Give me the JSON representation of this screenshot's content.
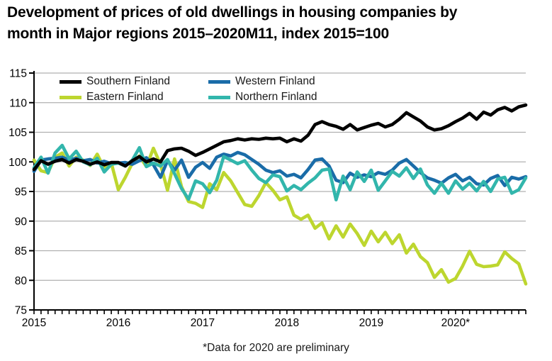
{
  "title": {
    "line1": "Development of prices of old dwellings in housing companies by",
    "line2": "month in Major regions 2015–2020M11, index 2015=100"
  },
  "footnote": "*Data for 2020 are preliminary",
  "chart_data": {
    "type": "line",
    "title": "Development of prices of old dwellings in housing companies by month in Major regions 2015–2020M11, index 2015=100",
    "xlabel": "",
    "ylabel": "",
    "ylim": [
      75,
      115
    ],
    "y_ticks": [
      75,
      80,
      85,
      90,
      95,
      100,
      105,
      110,
      115
    ],
    "x_tick_labels": [
      "2015",
      "2016",
      "2017",
      "2018",
      "2019",
      "2020*"
    ],
    "x_period": "monthly, 2015M01 to 2020M11",
    "grid": true,
    "gridline_color": "#b0b0b0",
    "axis_color": "#000000",
    "legend_position": "top-left",
    "series": [
      {
        "name": "Southern Finland",
        "color": "#000000",
        "values": [
          98.7,
          100.2,
          99.6,
          100.1,
          100.4,
          99.8,
          100.4,
          100.1,
          99.6,
          100.0,
          99.5,
          99.9,
          99.9,
          99.3,
          100.2,
          100.9,
          100.0,
          100.5,
          100.0,
          101.9,
          102.2,
          102.3,
          101.8,
          101.1,
          101.6,
          102.2,
          102.8,
          103.4,
          103.6,
          103.9,
          103.7,
          103.9,
          103.8,
          104.0,
          103.9,
          104.0,
          103.4,
          103.9,
          103.5,
          104.5,
          106.3,
          106.8,
          106.3,
          106.0,
          105.5,
          106.3,
          105.4,
          105.8,
          106.2,
          106.5,
          105.9,
          106.3,
          107.2,
          108.3,
          107.6,
          106.9,
          105.9,
          105.4,
          105.6,
          106.1,
          106.8,
          107.4,
          108.2,
          107.2,
          108.4,
          107.9,
          108.8,
          109.2,
          108.6,
          109.3,
          109.6
        ]
      },
      {
        "name": "Eastern Finland",
        "color": "#bdd62f",
        "values": [
          100.3,
          98.5,
          98.2,
          100.8,
          101.5,
          99.3,
          100.8,
          100.3,
          99.4,
          101.3,
          98.9,
          99.8,
          95.3,
          97.4,
          99.8,
          101.0,
          99.2,
          102.3,
          99.6,
          95.2,
          100.5,
          95.8,
          93.3,
          93.0,
          92.3,
          96.3,
          95.3,
          98.2,
          96.8,
          94.8,
          92.8,
          92.5,
          94.3,
          96.5,
          95.2,
          93.6,
          94.1,
          91.0,
          90.3,
          91.0,
          88.8,
          89.7,
          87.0,
          89.2,
          87.3,
          89.5,
          87.9,
          85.9,
          88.3,
          86.5,
          88.1,
          86.2,
          87.7,
          84.6,
          86.1,
          84.0,
          83.0,
          80.5,
          81.8,
          79.7,
          80.3,
          82.4,
          84.9,
          82.7,
          82.3,
          82.4,
          82.6,
          84.8,
          83.7,
          82.8,
          79.4
        ]
      },
      {
        "name": "Western Finland",
        "color": "#1a6ca8",
        "values": [
          98.4,
          100.3,
          100.5,
          100.6,
          100.8,
          100.3,
          100.6,
          100.2,
          100.4,
          99.8,
          100.1,
          99.7,
          99.8,
          99.9,
          99.6,
          100.2,
          100.7,
          99.5,
          97.4,
          100.2,
          98.6,
          100.3,
          97.4,
          99.1,
          99.9,
          98.9,
          100.8,
          101.3,
          101.0,
          101.6,
          101.2,
          100.4,
          99.6,
          98.6,
          98.2,
          98.5,
          97.6,
          97.9,
          97.3,
          98.7,
          100.3,
          100.5,
          99.3,
          96.9,
          96.5,
          98.1,
          97.4,
          97.8,
          97.5,
          98.2,
          97.9,
          98.6,
          99.8,
          100.4,
          99.3,
          98.2,
          97.3,
          96.9,
          96.4,
          97.3,
          97.9,
          96.8,
          97.4,
          96.3,
          96.1,
          97.2,
          97.7,
          96.0,
          97.4,
          97.1,
          97.5
        ]
      },
      {
        "name": "Northern Finland",
        "color": "#32b6ac",
        "values": [
          99.0,
          100.8,
          98.1,
          101.5,
          102.8,
          100.5,
          101.8,
          100.0,
          99.5,
          100.6,
          98.3,
          99.6,
          99.8,
          99.3,
          100.3,
          102.4,
          99.2,
          99.8,
          99.3,
          100.4,
          98.0,
          95.5,
          93.7,
          96.8,
          96.3,
          94.8,
          96.9,
          100.9,
          100.3,
          99.7,
          100.2,
          98.6,
          97.2,
          96.5,
          97.8,
          97.5,
          95.1,
          96.0,
          95.3,
          96.4,
          97.3,
          98.6,
          98.8,
          93.6,
          97.6,
          95.3,
          98.3,
          96.7,
          98.6,
          95.2,
          96.8,
          98.4,
          97.6,
          99.0,
          97.2,
          98.8,
          96.1,
          94.7,
          96.4,
          94.7,
          96.8,
          95.4,
          96.4,
          95.1,
          96.7,
          95.0,
          97.1,
          97.4,
          94.7,
          95.3,
          97.3
        ]
      }
    ]
  }
}
